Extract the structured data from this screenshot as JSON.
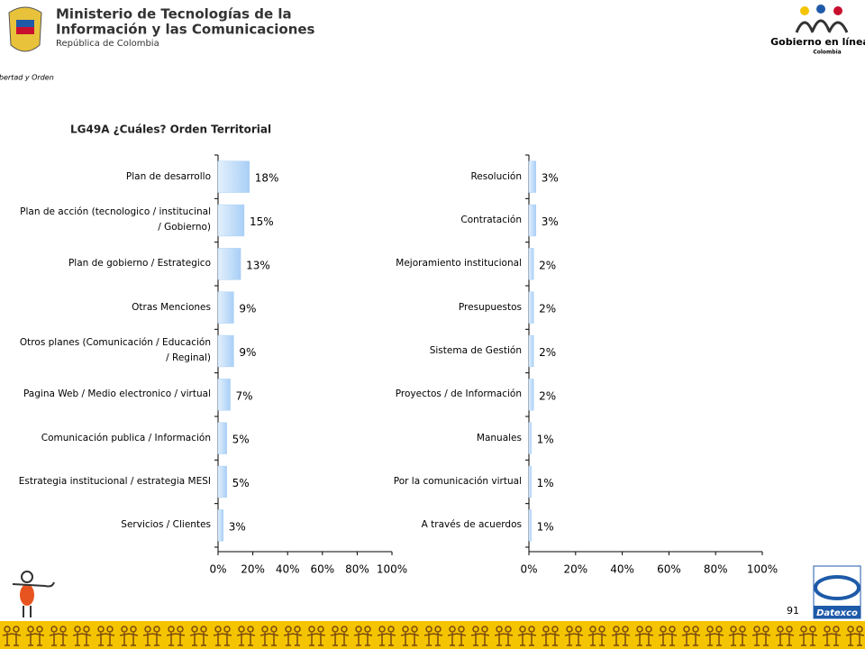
{
  "header": {
    "ministry_line1": "Ministerio de Tecnologías de la",
    "ministry_line2": "Información y las Comunicaciones",
    "ministry_line3": "República de Colombia",
    "shield_caption": "Libertad y Orden",
    "gel_logo": "Gobierno en línea",
    "gel_country": "Colombia"
  },
  "title": "LG49A ¿Cuáles? Orden Territorial",
  "chart_data": [
    {
      "type": "bar",
      "orientation": "horizontal",
      "color": "#a9cff6",
      "categories": [
        "Plan de desarrollo",
        "Plan de acción (tecnologico / institucinal / Gobierno)",
        "Plan de gobierno / Estrategico",
        "Otras Menciones",
        "Otros planes (Comunicación / Educación / Reginal)",
        "Pagina Web / Medio electronico  / virtual",
        "Comunicación publica / Información",
        "Estrategia institucional / estrategia MESI",
        "Servicios / Clientes"
      ],
      "values": [
        18,
        15,
        13,
        9,
        9,
        7,
        5,
        5,
        3
      ],
      "value_labels": [
        "18%",
        "15%",
        "13%",
        "9%",
        "9%",
        "7%",
        "5%",
        "5%",
        "3%"
      ],
      "xlim": [
        0,
        100
      ],
      "xticks": [
        {
          "value": 0,
          "label": "0%"
        },
        {
          "value": 20,
          "label": "20%"
        },
        {
          "value": 40,
          "label": "40%"
        },
        {
          "value": 60,
          "label": "60%"
        },
        {
          "value": 80,
          "label": "80%"
        },
        {
          "value": 100,
          "label": "100%"
        }
      ]
    },
    {
      "type": "bar",
      "orientation": "horizontal",
      "color": "#a9cff6",
      "categories": [
        "Resolución",
        "Contratación",
        "Mejoramiento institucional",
        "Presupuestos",
        "Sistema de Gestión",
        "Proyectos / de Información",
        "Manuales",
        "Por la comunicación virtual",
        "A través de acuerdos"
      ],
      "values": [
        3,
        3,
        2,
        2,
        2,
        2,
        1,
        1,
        1
      ],
      "value_labels": [
        "3%",
        "3%",
        "2%",
        "2%",
        "2%",
        "2%",
        "1%",
        "1%",
        "1%"
      ],
      "xlim": [
        0,
        100
      ],
      "xticks": [
        {
          "value": 0,
          "label": "0%"
        },
        {
          "value": 20,
          "label": "20%"
        },
        {
          "value": 40,
          "label": "40%"
        },
        {
          "value": 60,
          "label": "60%"
        },
        {
          "value": 80,
          "label": "80%"
        },
        {
          "value": 100,
          "label": "100%"
        }
      ]
    }
  ],
  "footer": {
    "brand": "Datexco",
    "page_number": "91"
  }
}
